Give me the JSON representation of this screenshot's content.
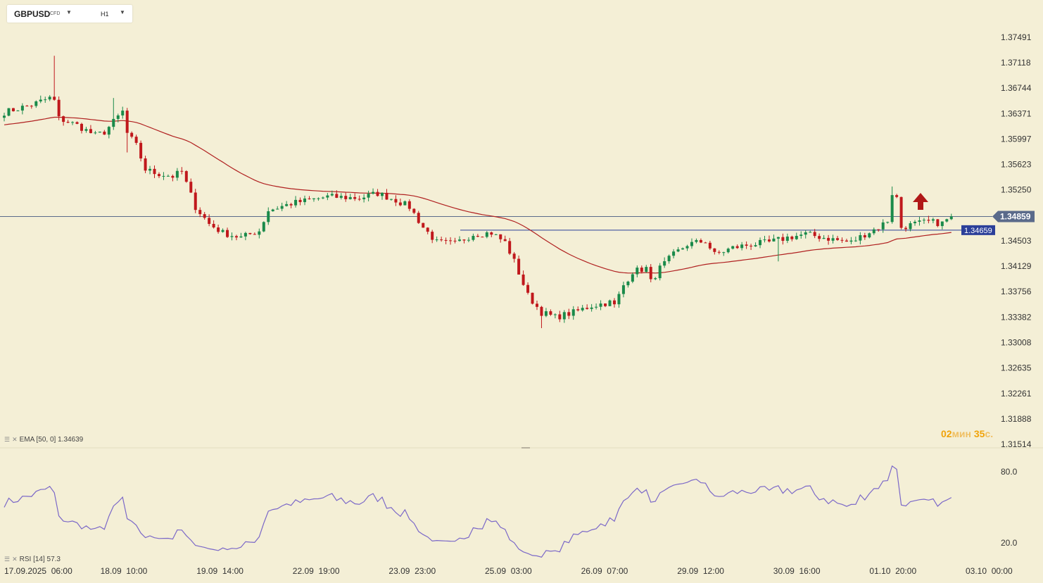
{
  "symbol_bar": {
    "symbol": "GBPUSD",
    "instrument_type": "CFD",
    "timeframe": "H1",
    "dropdown_icon": "caret-down-icon"
  },
  "price_axis": {
    "labels": [
      "1.37491",
      "1.37118",
      "1.36744",
      "1.36371",
      "1.35997",
      "1.35623",
      "1.35250",
      "1.34503",
      "1.34129",
      "1.33756",
      "1.33382",
      "1.33008",
      "1.32635",
      "1.32261",
      "1.31888",
      "1.31514"
    ]
  },
  "current_price": {
    "label": "1.34859",
    "value": 1.34859,
    "color": "#5a6a8a"
  },
  "level_line": {
    "label": "1.34659",
    "value": 1.34659,
    "color": "#2b3f99"
  },
  "indicators": {
    "ema_legend": "EMA [50, 0] 1.34639",
    "rsi_legend": "RSI [14] 57.3",
    "legend_icon": "indicator-settings-icon",
    "close_icon": "close-icon"
  },
  "rsi_axis": {
    "labels": [
      "80.0",
      "20.0"
    ]
  },
  "timer": {
    "minutes": "02",
    "min_unit": "мин",
    "seconds": "35",
    "sec_unit": "с."
  },
  "time_axis": {
    "labels": [
      "17.09.2025  06:00",
      "18.09  10:00",
      "19.09  14:00",
      "22.09  19:00",
      "23.09  23:00",
      "25.09  03:00",
      "26.09  07:00",
      "29.09  12:00",
      "30.09  16:00",
      "01.10  20:00",
      "03.10  00:00"
    ]
  },
  "colors": {
    "up": "#1a8a4a",
    "down": "#c0181c",
    "ema": "#b02020",
    "rsi": "#7b68c8",
    "arrow": "#b01818"
  },
  "signal_arrow": "up-arrow-icon",
  "chart_data": {
    "type": "candlestick",
    "timeframe": "H1",
    "price_range": [
      1.31514,
      1.37491
    ],
    "rsi_range": [
      20.0,
      80.0
    ],
    "waypoints": [
      [
        0,
        1.3639
      ],
      [
        6,
        1.365
      ],
      [
        10,
        1.366
      ],
      [
        11,
        1.3656
      ],
      [
        12,
        1.363
      ],
      [
        16,
        1.362
      ],
      [
        20,
        1.3605
      ],
      [
        22,
        1.361
      ],
      [
        26,
        1.364
      ],
      [
        27,
        1.3608
      ],
      [
        29,
        1.359
      ],
      [
        31,
        1.3555
      ],
      [
        33,
        1.355
      ],
      [
        37,
        1.3545
      ],
      [
        39,
        1.3552
      ],
      [
        42,
        1.35
      ],
      [
        45,
        1.3475
      ],
      [
        48,
        1.3462
      ],
      [
        52,
        1.3455
      ],
      [
        56,
        1.3465
      ],
      [
        58,
        1.3495
      ],
      [
        63,
        1.3505
      ],
      [
        67,
        1.351
      ],
      [
        71,
        1.3515
      ],
      [
        78,
        1.3513
      ],
      [
        82,
        1.352
      ],
      [
        86,
        1.351
      ],
      [
        89,
        1.35
      ],
      [
        92,
        1.347
      ],
      [
        95,
        1.3448
      ],
      [
        99,
        1.3446
      ],
      [
        103,
        1.346
      ],
      [
        107,
        1.3462
      ],
      [
        110,
        1.3448
      ],
      [
        112,
        1.342
      ],
      [
        115,
        1.337
      ],
      [
        118,
        1.3345
      ],
      [
        121,
        1.3338
      ],
      [
        125,
        1.3345
      ],
      [
        129,
        1.3355
      ],
      [
        133,
        1.336
      ],
      [
        134,
        1.3355
      ],
      [
        136,
        1.3385
      ],
      [
        138,
        1.3405
      ],
      [
        141,
        1.341
      ],
      [
        142,
        1.339
      ],
      [
        144,
        1.341
      ],
      [
        147,
        1.343
      ],
      [
        150,
        1.3445
      ],
      [
        154,
        1.345
      ],
      [
        156,
        1.343
      ],
      [
        160,
        1.344
      ],
      [
        164,
        1.3445
      ],
      [
        168,
        1.3448
      ],
      [
        172,
        1.3455
      ],
      [
        176,
        1.346
      ],
      [
        180,
        1.3455
      ],
      [
        184,
        1.345
      ],
      [
        186,
        1.3448
      ],
      [
        189,
        1.346
      ],
      [
        192,
        1.347
      ],
      [
        194,
        1.348
      ],
      [
        195,
        1.352
      ],
      [
        196,
        1.3513
      ],
      [
        197,
        1.347
      ],
      [
        200,
        1.3475
      ],
      [
        203,
        1.3478
      ],
      [
        206,
        1.3476
      ],
      [
        208,
        1.3486
      ]
    ],
    "ema_period": 50,
    "rsi_period": 14,
    "last_ema": 1.34639,
    "last_rsi": 57.3
  }
}
